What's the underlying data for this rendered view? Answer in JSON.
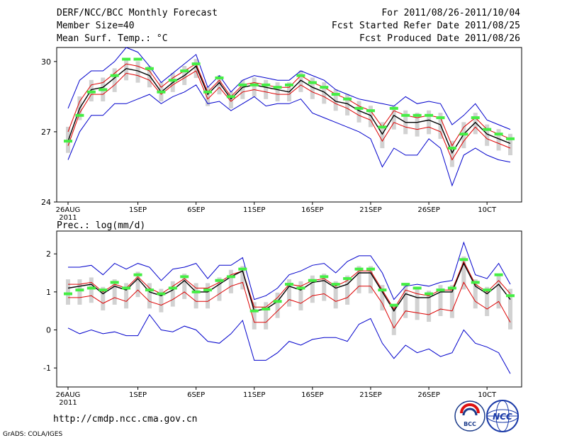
{
  "header": {
    "title": "DERF/NCC/BCC Monthly Forecast",
    "member": "Member Size=40",
    "variable": "Mean Surf. Temp.: °C",
    "period": "For 2011/08/26-2011/10/04",
    "started": "Fcst Started Refer Date 2011/08/25",
    "produced": "Fcst Produced Date 2011/08/26"
  },
  "footer": {
    "url": "http://cmdp.ncc.cma.gov.cn",
    "credit": "GrADS: COLA/IGES",
    "logo_bcc": "BCC",
    "logo_ncc": "NCC"
  },
  "colors": {
    "envelope": "#0000cc",
    "spread": "#dd0000",
    "mean": "#000000",
    "median": "#44ee44",
    "bar": "#d2d2d2"
  },
  "chart_data": [
    {
      "type": "line",
      "title": "Mean Surf. Temp.: °C",
      "x_start": "2011-08-26",
      "days": 39,
      "x_tick_labels": [
        "26AUG",
        "1SEP",
        "6SEP",
        "11SEP",
        "16SEP",
        "21SEP",
        "26SEP",
        "1OCT"
      ],
      "x_tick_labels_displayed": [
        "26AUG",
        "1SEP",
        "6SEP",
        "11SEP",
        "16SEP",
        "21SEP",
        "26SEP",
        "10CT"
      ],
      "x_year_label": "2011",
      "y_ticks": [
        24,
        27,
        30
      ],
      "ylim": [
        24,
        30.6
      ],
      "series": [
        {
          "name": "max",
          "values": [
            28.0,
            29.2,
            29.6,
            29.6,
            30.0,
            30.6,
            30.4,
            29.8,
            29.1,
            29.5,
            29.9,
            30.3,
            28.9,
            29.4,
            28.7,
            29.2,
            29.4,
            29.3,
            29.2,
            29.2,
            29.6,
            29.4,
            29.2,
            28.8,
            28.6,
            28.4,
            28.3,
            28.2,
            28.1,
            28.5,
            28.2,
            28.3,
            28.2,
            27.3,
            27.7,
            28.2,
            27.5,
            27.3,
            27.1
          ]
        },
        {
          "name": "upper",
          "values": [
            27.0,
            28.3,
            29.0,
            29.1,
            29.5,
            29.9,
            29.8,
            29.6,
            28.9,
            29.3,
            29.6,
            29.9,
            28.7,
            29.2,
            28.5,
            29.0,
            29.1,
            29.0,
            28.9,
            28.9,
            29.4,
            29.1,
            28.9,
            28.6,
            28.4,
            28.1,
            27.9,
            27.2,
            27.9,
            27.7,
            27.6,
            27.7,
            27.6,
            26.4,
            27.2,
            27.6,
            27.1,
            26.9,
            26.7
          ]
        },
        {
          "name": "mean",
          "values": [
            26.6,
            28.0,
            28.8,
            28.9,
            29.3,
            29.7,
            29.6,
            29.4,
            28.7,
            29.1,
            29.4,
            29.8,
            28.6,
            29.1,
            28.4,
            28.9,
            29.0,
            28.9,
            28.8,
            28.7,
            29.2,
            28.9,
            28.7,
            28.3,
            28.2,
            27.9,
            27.7,
            26.9,
            27.7,
            27.4,
            27.4,
            27.5,
            27.3,
            26.1,
            26.9,
            27.4,
            26.9,
            26.7,
            26.5
          ]
        },
        {
          "name": "lower",
          "values": [
            26.4,
            27.8,
            28.6,
            28.6,
            29.0,
            29.5,
            29.4,
            29.2,
            28.6,
            29.0,
            29.3,
            29.6,
            28.4,
            28.9,
            28.3,
            28.7,
            28.8,
            28.7,
            28.6,
            28.6,
            29.0,
            28.7,
            28.5,
            28.2,
            28.0,
            27.7,
            27.5,
            26.6,
            27.4,
            27.2,
            27.1,
            27.2,
            27.0,
            25.8,
            26.6,
            27.2,
            26.7,
            26.5,
            26.3
          ]
        },
        {
          "name": "min",
          "values": [
            25.8,
            27.0,
            27.7,
            27.7,
            28.2,
            28.2,
            28.4,
            28.6,
            28.2,
            28.5,
            28.7,
            29.0,
            28.2,
            28.3,
            27.9,
            28.2,
            28.5,
            28.1,
            28.2,
            28.2,
            28.4,
            27.8,
            27.6,
            27.4,
            27.2,
            27.0,
            26.7,
            25.5,
            26.3,
            26.0,
            26.0,
            26.7,
            26.3,
            24.7,
            26.0,
            26.3,
            26.0,
            25.8,
            25.7
          ]
        },
        {
          "name": "median",
          "values": [
            26.6,
            27.7,
            28.7,
            28.8,
            29.4,
            30.1,
            30.1,
            29.7,
            28.7,
            29.2,
            29.6,
            29.9,
            28.7,
            29.3,
            28.5,
            29.0,
            29.0,
            29.0,
            28.9,
            29.0,
            29.4,
            29.1,
            28.9,
            28.6,
            28.4,
            28.0,
            27.9,
            27.2,
            28.0,
            27.7,
            27.7,
            27.7,
            27.6,
            26.3,
            26.9,
            27.6,
            27.1,
            26.9,
            26.7
          ]
        }
      ]
    },
    {
      "type": "line",
      "title": "Prec.: log(mm/d)",
      "x_start": "2011-08-26",
      "days": 39,
      "x_tick_labels": [
        "26AUG",
        "1SEP",
        "6SEP",
        "11SEP",
        "16SEP",
        "21SEP",
        "26SEP",
        "1OCT"
      ],
      "x_tick_labels_displayed": [
        "26AUG",
        "1SEP",
        "6SEP",
        "11SEP",
        "16SEP",
        "21SEP",
        "26SEP",
        "10CT"
      ],
      "x_year_label": "2011",
      "y_ticks": [
        -1,
        0,
        1,
        2
      ],
      "ylim": [
        -1.5,
        2.6
      ],
      "series": [
        {
          "name": "max",
          "values": [
            1.65,
            1.65,
            1.7,
            1.45,
            1.75,
            1.6,
            1.75,
            1.65,
            1.3,
            1.6,
            1.65,
            1.75,
            1.35,
            1.7,
            1.7,
            1.9,
            0.8,
            0.9,
            1.1,
            1.45,
            1.55,
            1.7,
            1.75,
            1.5,
            1.8,
            1.95,
            1.95,
            1.5,
            0.8,
            1.15,
            1.2,
            1.15,
            1.25,
            1.3,
            2.3,
            1.45,
            1.35,
            1.75,
            1.2
          ]
        },
        {
          "name": "upper",
          "values": [
            1.2,
            1.2,
            1.25,
            1.0,
            1.2,
            1.1,
            1.4,
            1.1,
            0.95,
            1.15,
            1.35,
            1.1,
            1.1,
            1.25,
            1.45,
            1.55,
            0.6,
            0.6,
            0.85,
            1.2,
            1.15,
            1.3,
            1.35,
            1.15,
            1.3,
            1.55,
            1.55,
            1.05,
            0.55,
            1.05,
            0.95,
            0.9,
            1.05,
            1.05,
            1.8,
            1.2,
            1.0,
            1.3,
            0.95
          ]
        },
        {
          "name": "mean",
          "values": [
            1.1,
            1.15,
            1.2,
            0.95,
            1.15,
            1.05,
            1.35,
            1.0,
            0.9,
            1.05,
            1.3,
            1.0,
            1.0,
            1.2,
            1.4,
            1.55,
            0.5,
            0.55,
            0.75,
            1.15,
            1.05,
            1.25,
            1.3,
            1.1,
            1.2,
            1.5,
            1.5,
            1.0,
            0.5,
            0.95,
            0.85,
            0.85,
            1.0,
            1.0,
            1.75,
            1.15,
            0.95,
            1.2,
            0.8
          ]
        },
        {
          "name": "lower",
          "values": [
            0.85,
            0.85,
            0.9,
            0.7,
            0.85,
            0.75,
            1.05,
            0.75,
            0.65,
            0.8,
            1.0,
            0.75,
            0.75,
            0.95,
            1.15,
            1.25,
            0.2,
            0.2,
            0.5,
            0.8,
            0.7,
            0.9,
            0.95,
            0.75,
            0.85,
            1.15,
            1.15,
            0.7,
            0.05,
            0.5,
            0.45,
            0.4,
            0.55,
            0.5,
            1.25,
            0.75,
            0.55,
            0.75,
            0.2
          ]
        },
        {
          "name": "min",
          "values": [
            0.05,
            -0.1,
            0.0,
            -0.1,
            -0.05,
            -0.15,
            -0.15,
            0.4,
            0.0,
            -0.05,
            0.1,
            0.0,
            -0.3,
            -0.35,
            -0.1,
            0.25,
            -0.8,
            -0.8,
            -0.6,
            -0.3,
            -0.4,
            -0.25,
            -0.2,
            -0.2,
            -0.3,
            0.15,
            0.3,
            -0.35,
            -0.75,
            -0.4,
            -0.6,
            -0.5,
            -0.7,
            -0.6,
            0.0,
            -0.35,
            -0.45,
            -0.6,
            -1.15
          ]
        },
        {
          "name": "median",
          "values": [
            0.95,
            1.05,
            1.1,
            1.05,
            1.25,
            1.1,
            1.45,
            1.05,
            0.95,
            1.1,
            1.4,
            1.0,
            1.05,
            1.3,
            1.4,
            1.6,
            0.5,
            0.55,
            0.75,
            1.2,
            1.1,
            1.3,
            1.4,
            1.2,
            1.35,
            1.6,
            1.6,
            1.05,
            0.65,
            1.2,
            1.1,
            0.95,
            1.05,
            1.1,
            1.85,
            1.25,
            1.05,
            1.45,
            0.9
          ]
        }
      ]
    }
  ]
}
